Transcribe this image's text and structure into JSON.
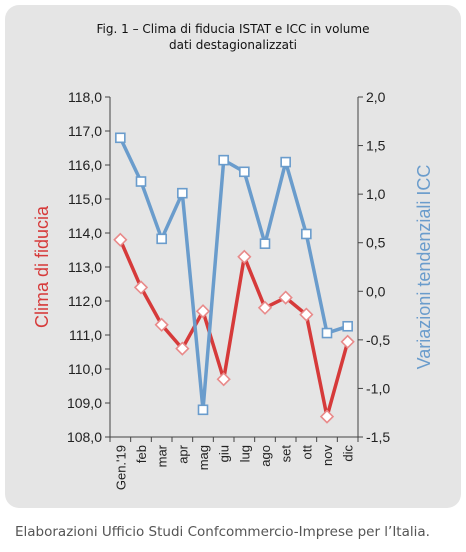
{
  "caption": "Elaborazioni Ufficio Studi Confcommercio-Imprese per l’Italia.",
  "chart_data": {
    "type": "line",
    "title_lines": [
      "Fig. 1 – Clima di fiducia ISTAT e ICC in volume",
      "dati destagionalizzati"
    ],
    "categories": [
      "Gen.'19",
      "feb",
      "mar",
      "apr",
      "mag",
      "giu",
      "lug",
      "ago",
      "set",
      "ott",
      "nov",
      "dic"
    ],
    "y_left": {
      "label": "Clima di fiducia",
      "range": [
        108.0,
        118.0
      ],
      "ticks": [
        "108,0",
        "109,0",
        "110,0",
        "111,0",
        "112,0",
        "113,0",
        "114,0",
        "115,0",
        "116,0",
        "117,0",
        "118,0"
      ]
    },
    "y_right": {
      "label": "Variazioni tendenziali ICC",
      "range": [
        -1.5,
        2.0
      ],
      "ticks": [
        "-1,5",
        "-1,0",
        "-0,5",
        "0,0",
        "0,5",
        "1,0",
        "1,5",
        "2,0"
      ]
    },
    "series": [
      {
        "axis": "left",
        "color": "#d63a3a",
        "marker": "diamond",
        "values": [
          113.8,
          112.4,
          111.3,
          110.6,
          111.7,
          109.7,
          113.3,
          111.8,
          112.1,
          111.6,
          108.6,
          110.8
        ]
      },
      {
        "axis": "right",
        "color": "#6a9ccc",
        "marker": "square",
        "values": [
          1.58,
          1.13,
          0.54,
          1.01,
          -1.22,
          1.35,
          1.23,
          0.49,
          1.33,
          0.59,
          -0.43,
          -0.36
        ]
      }
    ],
    "grid": false
  }
}
